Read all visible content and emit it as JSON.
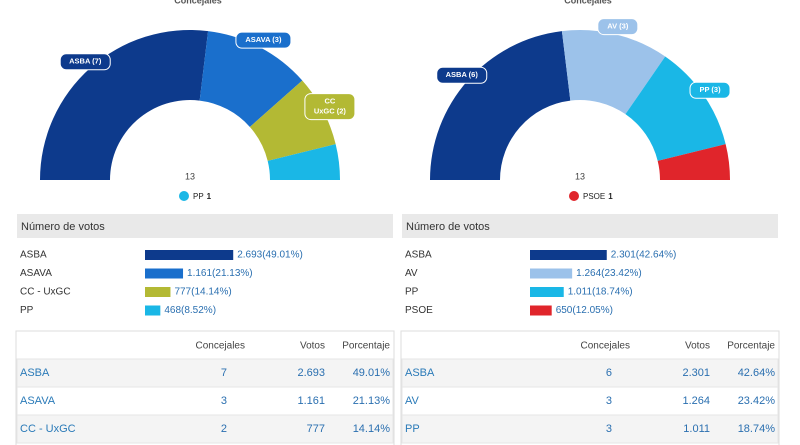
{
  "panels": [
    {
      "header": "Concejales",
      "hemicycle": {
        "total": "13",
        "segments": [
          {
            "label_lines": [
              "ASBA (7)"
            ],
            "seats": 7,
            "color": "#0d3a8c"
          },
          {
            "label_lines": [
              "ASAVA (3)"
            ],
            "seats": 3,
            "color": "#1a6fcc"
          },
          {
            "label_lines": [
              "CC",
              "UxGC (2)"
            ],
            "seats": 2,
            "color": "#b3b934"
          }
        ],
        "legend": {
          "name": "PP",
          "seats": 1,
          "color": "#1ab7e6"
        }
      },
      "votes_title": "Número de votos",
      "votes": [
        {
          "name": "ASBA",
          "percent": 49.01,
          "label": "2.693(49.01%)",
          "color": "#0d3a8c"
        },
        {
          "name": "ASAVA",
          "percent": 21.13,
          "label": "1.161(21.13%)",
          "color": "#1a6fcc"
        },
        {
          "name": "CC - UxGC",
          "percent": 14.14,
          "label": "777(14.14%)",
          "color": "#b3b934"
        },
        {
          "name": "PP",
          "percent": 8.52,
          "label": "468(8.52%)",
          "color": "#1ab7e6"
        }
      ],
      "table": {
        "headers": [
          "Concejales",
          "Votos",
          "Porcentaje"
        ],
        "rows": [
          [
            "ASBA",
            "7",
            "2.693",
            "49.01%"
          ],
          [
            "ASAVA",
            "3",
            "1.161",
            "21.13%"
          ],
          [
            "CC - UxGC",
            "2",
            "777",
            "14.14%"
          ]
        ]
      }
    },
    {
      "header": "Concejales",
      "hemicycle": {
        "total": "13",
        "segments": [
          {
            "label_lines": [
              "ASBA (6)"
            ],
            "seats": 6,
            "color": "#0d3a8c"
          },
          {
            "label_lines": [
              "AV (3)"
            ],
            "seats": 3,
            "color": "#9cc2ea"
          },
          {
            "label_lines": [
              "PP (3)"
            ],
            "seats": 3,
            "color": "#1ab7e6"
          }
        ],
        "legend": {
          "name": "PSOE",
          "seats": 1,
          "color": "#e0252b"
        }
      },
      "votes_title": "Número de votos",
      "votes": [
        {
          "name": "ASBA",
          "percent": 42.64,
          "label": "2.301(42.64%)",
          "color": "#0d3a8c"
        },
        {
          "name": "AV",
          "percent": 23.42,
          "label": "1.264(23.42%)",
          "color": "#9cc2ea"
        },
        {
          "name": "PP",
          "percent": 18.74,
          "label": "1.011(18.74%)",
          "color": "#1ab7e6"
        },
        {
          "name": "PSOE",
          "percent": 12.05,
          "label": "650(12.05%)",
          "color": "#e0252b"
        }
      ],
      "table": {
        "headers": [
          "Concejales",
          "Votos",
          "Porcentaje"
        ],
        "rows": [
          [
            "ASBA",
            "6",
            "2.301",
            "42.64%"
          ],
          [
            "AV",
            "3",
            "1.264",
            "23.42%"
          ],
          [
            "PP",
            "3",
            "1.011",
            "18.74%"
          ]
        ]
      }
    }
  ]
}
